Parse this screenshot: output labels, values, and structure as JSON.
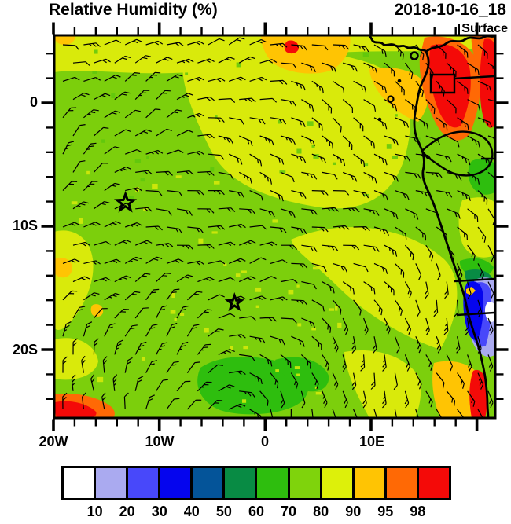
{
  "header": {
    "title": "Relative Humidity (%)",
    "timestamp": "2018-10-16_18",
    "level_label": "Surface"
  },
  "axes": {
    "x_tick_labels": [
      "20W",
      "10W",
      "0",
      "10E"
    ],
    "y_tick_labels": [
      "0",
      "10S",
      "20S"
    ]
  },
  "colorbar": {
    "labels": [
      "10",
      "20",
      "30",
      "40",
      "50",
      "60",
      "70",
      "80",
      "90",
      "95",
      "98"
    ],
    "colors": [
      "#FFFFFF",
      "#AAAAF0",
      "#4848FA",
      "#0505EE",
      "#045499",
      "#088B44",
      "#2EBE0E",
      "#7FD30C",
      "#DDF00A",
      "#FFC403",
      "#FF6905",
      "#F40A08"
    ]
  },
  "chart_data": {
    "type": "heatmap",
    "title": "Relative Humidity (%)",
    "valid_time": "2018-10-16_18",
    "level": "Surface",
    "units": "%",
    "x_axis": {
      "tick_labels": [
        "20W",
        "10W",
        "0",
        "10E"
      ],
      "lon_range_deg": [
        -20,
        21.7
      ],
      "minor_tick_step_deg": 2
    },
    "y_axis": {
      "tick_labels": [
        "0",
        "10S",
        "20S"
      ],
      "lat_range_deg": [
        5.5,
        -25.5
      ],
      "minor_tick_step_deg": 2
    },
    "color_levels": [
      10,
      20,
      30,
      40,
      50,
      60,
      70,
      80,
      90,
      95,
      98
    ],
    "color_palette": [
      "#FFFFFF",
      "#AAAAF0",
      "#4848FA",
      "#0505EE",
      "#045499",
      "#088B44",
      "#2EBE0E",
      "#7FD30C",
      "#DDF00A",
      "#FFC403",
      "#FF6905",
      "#F40A08"
    ],
    "markers": [
      {
        "shape": "star",
        "lon_deg": -13.2,
        "lat_deg": -8.1
      },
      {
        "shape": "star",
        "lon_deg": -2.9,
        "lat_deg": -16.2
      }
    ],
    "wind_barbs": {
      "present": true,
      "description": "Surface wind barbs over whole domain; anticyclonic circulation centered near the dark-green minimum at bottom-center (South Atlantic high): westward flow across the north, northward flow along the African coast, rotating barbs around the low-RH-gradient swirl."
    },
    "field_regions": [
      {
        "area": "open South Atlantic (most of domain)",
        "rh_percent": "70-90",
        "colors": [
          "#7FD30C",
          "#DDF00A"
        ]
      },
      {
        "area": "swirl at bottom-center and patch areas center-left",
        "rh_percent": "60-70",
        "color": "#2EBE0E"
      },
      {
        "area": "Gulf of Guinea / Congo coast, top-right",
        "rh_percent": "95->98",
        "colors": [
          "#FFC403",
          "#FF6905",
          "#F40A08"
        ]
      },
      {
        "area": "top-center ocean patch near 0 lon",
        "rh_percent": "90-98",
        "colors": [
          "#FFC403",
          "#F40A08"
        ]
      },
      {
        "area": "interior highlands bottom-right (Namibia/Angola)",
        "rh_percent": "<10-40",
        "colors": [
          "#FFFFFF",
          "#AAAAF0",
          "#4848FA",
          "#0505EE"
        ]
      },
      {
        "area": "bottom-right coastal strip",
        "rh_percent": "90->98",
        "colors": [
          "#FFC403",
          "#F40A08"
        ]
      },
      {
        "area": "bottom-left corner and left-edge specks",
        "rh_percent": "90->98",
        "colors": [
          "#FFC403",
          "#F40A08"
        ]
      }
    ]
  }
}
